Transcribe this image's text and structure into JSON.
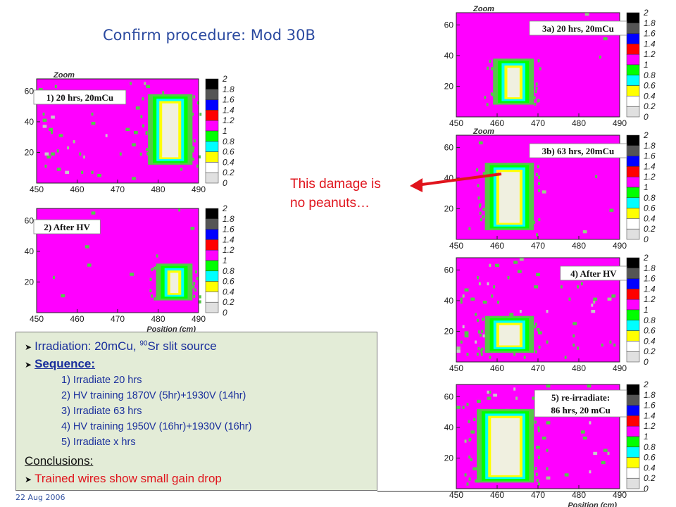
{
  "title": "Confirm procedure: Mod 30B",
  "date": "22 Aug 2006",
  "annotation": {
    "line1": "This damage is",
    "line2": "no peanuts…",
    "color": "#e0141c"
  },
  "info": {
    "irradiation_prefix": "Irradiation: 20mCu, ",
    "irradiation_sup": "90",
    "irradiation_suffix": "Sr slit source",
    "sequence_label": "Sequence:",
    "steps": [
      "1) Irradiate 20 hrs",
      "2) HV training 1870V (5hr)+1930V (14hr)",
      "3) Irradiate 63 hrs",
      "4) HV training 1950V (16hr)+1930V (16hr)",
      "5) Irradiate x hrs"
    ],
    "conclusions_label": "Conclusions:",
    "conclusion": "Trained wires show small gain drop"
  },
  "colors": {
    "background_pink": "#ff00ff",
    "hot_colors": [
      "#ffffff",
      "#e0e0e0",
      "#ffff00",
      "#00ffff",
      "#00ff00"
    ]
  },
  "chart_data": [
    {
      "type": "heatmap",
      "label": "1) 20 hrs, 20mCu",
      "zoom_label": "Zoom",
      "x_ticks": [
        "450",
        "460",
        "470",
        "480",
        "490"
      ],
      "y_ticks": [
        "20",
        "40",
        "60"
      ],
      "xlabel": "",
      "colorbar_ticks": [
        "2",
        "1.8",
        "1.6",
        "1.4",
        "1.2",
        "1",
        "0.8",
        "0.6",
        "0.4",
        "0.2",
        "0"
      ],
      "xlim": [
        450,
        490
      ],
      "ylim": [
        0,
        68
      ],
      "zlim": [
        0,
        2
      ],
      "hot_region": {
        "x_center": 483,
        "x_halfwidth": 2.5,
        "y_range": [
          12,
          58
        ]
      },
      "scatter_count": 55
    },
    {
      "type": "heatmap",
      "label": "2) After HV",
      "zoom_label": "",
      "x_ticks": [
        "450",
        "460",
        "470",
        "480",
        "490"
      ],
      "y_ticks": [
        "20",
        "40",
        "60"
      ],
      "xlabel": "Position (cm)",
      "colorbar_ticks": [
        "2",
        "1.8",
        "1.6",
        "1.4",
        "1.2",
        "1",
        "0.8",
        "0.6",
        "0.4",
        "0.2",
        "0"
      ],
      "xlim": [
        450,
        490
      ],
      "ylim": [
        0,
        68
      ],
      "zlim": [
        0,
        2
      ],
      "hot_region": {
        "x_center": 484,
        "x_halfwidth": 1.5,
        "y_range": [
          8,
          32
        ]
      },
      "scatter_count": 10
    },
    {
      "type": "heatmap",
      "label": "3a) 20 hrs, 20mCu",
      "zoom_label": "Zoom",
      "x_ticks": [
        "450",
        "460",
        "470",
        "480",
        "490"
      ],
      "y_ticks": [
        "20",
        "40",
        "60"
      ],
      "xlabel": "",
      "colorbar_ticks": [
        "2",
        "1.8",
        "1.6",
        "1.4",
        "1.2",
        "1",
        "0.8",
        "0.6",
        "0.4",
        "0.2",
        "0"
      ],
      "xlim": [
        450,
        490
      ],
      "ylim": [
        0,
        68
      ],
      "zlim": [
        0,
        2
      ],
      "hot_region": {
        "x_center": 464,
        "x_halfwidth": 2,
        "y_range": [
          8,
          38
        ]
      },
      "scatter_count": 8
    },
    {
      "type": "heatmap",
      "label": "3b) 63 hrs, 20mCu",
      "zoom_label": "Zoom",
      "x_ticks": [
        "450",
        "460",
        "470",
        "480",
        "490"
      ],
      "y_ticks": [
        "20",
        "40",
        "60"
      ],
      "xlabel": "",
      "colorbar_ticks": [
        "2",
        "1.8",
        "1.6",
        "1.4",
        "1.2",
        "1",
        "0.8",
        "0.6",
        "0.4",
        "0.2",
        "0"
      ],
      "xlim": [
        450,
        490
      ],
      "ylim": [
        0,
        68
      ],
      "zlim": [
        0,
        2
      ],
      "hot_region": {
        "x_center": 463,
        "x_halfwidth": 3,
        "y_range": [
          6,
          50
        ]
      },
      "scatter_count": 12
    },
    {
      "type": "heatmap",
      "label": "4) After HV",
      "zoom_label": "",
      "x_ticks": [
        "450",
        "460",
        "470",
        "480",
        "490"
      ],
      "y_ticks": [
        "20",
        "40",
        "60"
      ],
      "xlabel": "",
      "colorbar_ticks": [
        "2",
        "1.8",
        "1.6",
        "1.4",
        "1.2",
        "1",
        "0.8",
        "0.6",
        "0.4",
        "0.2",
        "0"
      ],
      "xlim": [
        450,
        490
      ],
      "ylim": [
        0,
        68
      ],
      "zlim": [
        0,
        2
      ],
      "hot_region": {
        "x_center": 463,
        "x_halfwidth": 3,
        "y_range": [
          6,
          30
        ]
      },
      "scatter_count": 70
    },
    {
      "type": "heatmap",
      "label": "5) re-irradiate:",
      "label2": "86 hrs, 20 mCu",
      "zoom_label": "",
      "x_ticks": [
        "450",
        "460",
        "470",
        "480",
        "490"
      ],
      "y_ticks": [
        "20",
        "40",
        "60"
      ],
      "xlabel": "Position (cm)",
      "colorbar_ticks": [
        "2",
        "1.8",
        "1.6",
        "1.4",
        "1.2",
        "1",
        "0.8",
        "0.6",
        "0.4",
        "0.2",
        "0"
      ],
      "xlim": [
        450,
        490
      ],
      "ylim": [
        0,
        68
      ],
      "zlim": [
        0,
        2
      ],
      "hot_region": {
        "x_center": 462,
        "x_halfwidth": 4,
        "y_range": [
          4,
          52
        ]
      },
      "scatter_count": 60
    }
  ]
}
